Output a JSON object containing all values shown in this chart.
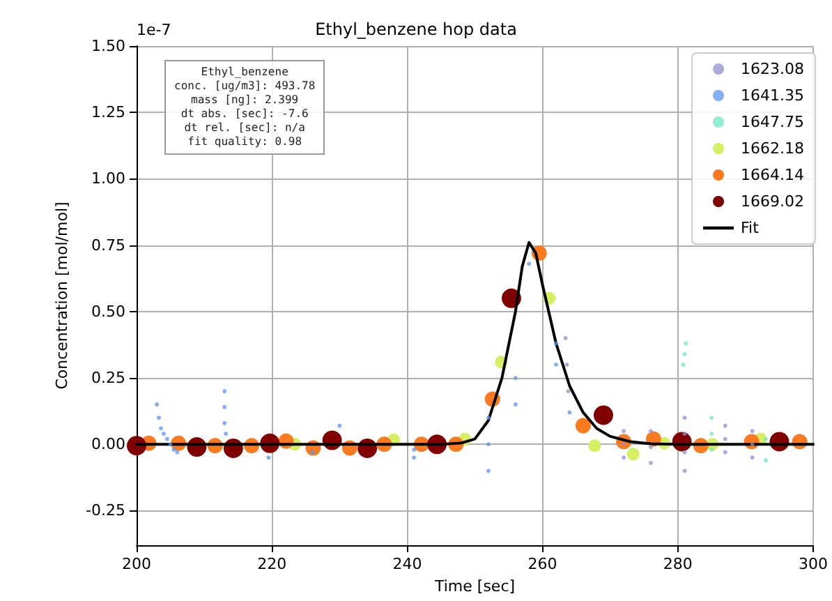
{
  "chart_data": {
    "type": "scatter",
    "title": "Ethyl_benzene hop data",
    "xlabel": "Time [sec]",
    "ylabel": "Concentration [mol/mol]",
    "annotations": [
      "1e-7",
      "Ethyl_benzene\nconc. [ug/m3]: 493.78\nmass [ng]: 2.399\ndt abs. [sec]: -7.6\ndt rel. [sec]: n/a\nfit quality: 0.98"
    ],
    "xlim": [
      200,
      300
    ],
    "xticks": [
      200,
      220,
      240,
      260,
      280,
      300
    ],
    "ylim": [
      -0.38,
      1.5
    ],
    "yticks": [
      {
        "value": -0.25,
        "label": "-0.25"
      },
      {
        "value": 0,
        "label": "0.00"
      },
      {
        "value": 0.25,
        "label": "0.25"
      },
      {
        "value": 0.5,
        "label": "0.50"
      },
      {
        "value": 0.75,
        "label": "0.75"
      },
      {
        "value": 1,
        "label": "1.00"
      },
      {
        "value": 1.25,
        "label": "1.25"
      },
      {
        "value": 1.5,
        "label": "1.50"
      }
    ],
    "grid": true,
    "legend": "top right",
    "marker": "circle",
    "series": [
      {
        "name": "1623.08",
        "color": "#9090d0",
        "x": [
          263.4,
          263.6,
          263.8,
          272,
          272,
          272,
          276,
          276,
          276,
          281,
          281,
          281,
          281,
          287,
          287,
          287,
          291,
          291,
          291
        ],
        "values": [
          0.4,
          0.3,
          0.2,
          -0.05,
          0,
          0.05,
          -0.07,
          -0.01,
          0.05,
          -0.1,
          -0.03,
          0.04,
          0.1,
          -0.03,
          0.02,
          0.07,
          -0.05,
          0,
          0.05
        ]
      },
      {
        "name": "1641.35",
        "color": "#5a96f0",
        "x": [
          203,
          203.3,
          203.6,
          204,
          204.5,
          205,
          205.5,
          206,
          213,
          213,
          213,
          213.2,
          219.5,
          226,
          230,
          241,
          241,
          252,
          252,
          252,
          256,
          256,
          258,
          262,
          262,
          264
        ],
        "values": [
          0.15,
          0.1,
          0.06,
          0.04,
          0.02,
          0,
          -0.02,
          -0.03,
          0.2,
          0.14,
          0.08,
          0.04,
          -0.05,
          -0.03,
          0.07,
          -0.05,
          -0.02,
          -0.1,
          0,
          0.1,
          0.15,
          0.25,
          0.68,
          0.3,
          0.38,
          0.12
        ]
      },
      {
        "name": "1647.75",
        "color": "#70e8c8",
        "x": [
          280.8,
          281,
          281.2,
          285,
          285,
          285,
          293,
          293
        ],
        "values": [
          0.3,
          0.34,
          0.38,
          -0.02,
          0.04,
          0.1,
          -0.06,
          0.02
        ]
      },
      {
        "name": "1662.18",
        "color": "#d4f060",
        "x": [
          223.4,
          238,
          248.5,
          253.9,
          261,
          267.7,
          273.4,
          278,
          285.1,
          292.2
        ],
        "values": [
          0,
          0.017,
          0.02,
          0.31,
          0.55,
          -0.005,
          -0.037,
          0.004,
          0,
          0.02
        ]
      },
      {
        "name": "1664.14",
        "color": "#f97a1f",
        "x": [
          201.8,
          206.2,
          211.6,
          217,
          222.1,
          226.1,
          231.5,
          236.6,
          242.1,
          247.2,
          252.6,
          259.5,
          266,
          272,
          276.4,
          283.4,
          290.9,
          298
        ],
        "values": [
          0.004,
          0.004,
          -0.005,
          -0.005,
          0.012,
          -0.014,
          -0.014,
          0,
          0,
          0,
          0.17,
          0.72,
          0.07,
          0.01,
          0.02,
          -0.005,
          0.01,
          0.01
        ]
      },
      {
        "name": "1669.02",
        "color": "#800000",
        "x": [
          200,
          208.9,
          214.3,
          219.7,
          228.9,
          234.1,
          244.4,
          255.4,
          269,
          280.6,
          295
        ],
        "values": [
          -0.005,
          -0.01,
          -0.015,
          0.004,
          0.015,
          -0.015,
          0,
          0.55,
          0.11,
          0.01,
          0.01
        ]
      },
      {
        "name": "Fit",
        "type": "line",
        "marker": "none",
        "color": "#000000",
        "x": [
          200,
          245,
          248,
          250,
          252,
          254,
          256,
          257,
          258,
          259,
          260,
          262,
          264,
          266,
          268,
          270,
          273,
          276,
          280,
          300
        ],
        "values": [
          0,
          0,
          0.005,
          0.02,
          0.09,
          0.25,
          0.5,
          0.67,
          0.76,
          0.72,
          0.6,
          0.38,
          0.22,
          0.12,
          0.06,
          0.03,
          0.01,
          0.002,
          0,
          0
        ]
      }
    ]
  }
}
